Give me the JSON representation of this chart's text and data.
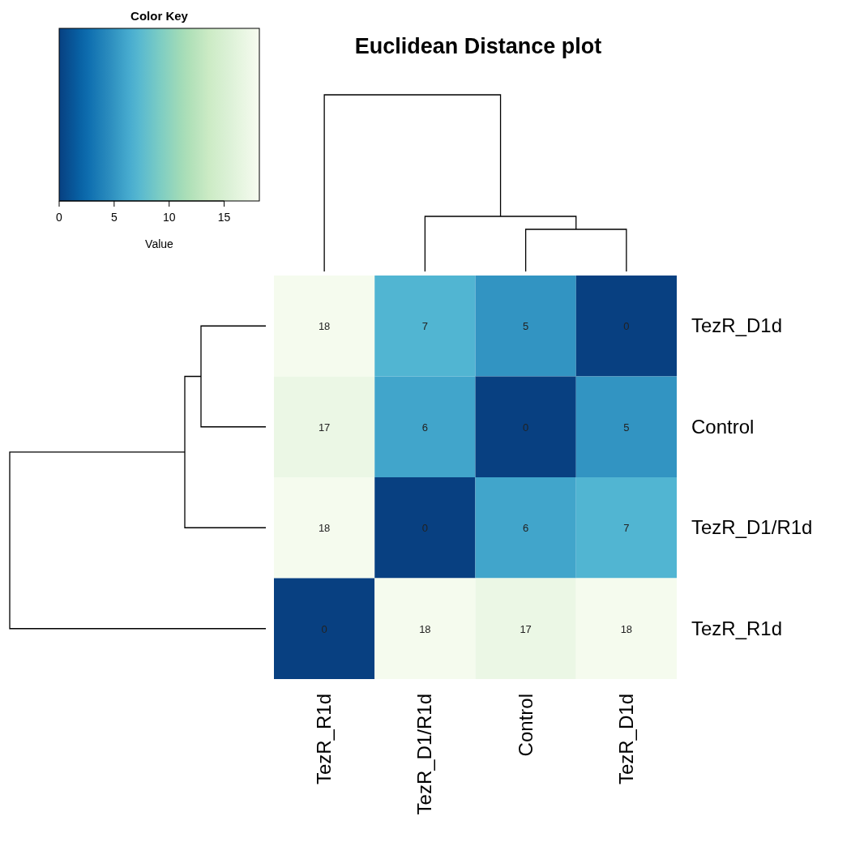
{
  "chart_data": {
    "type": "heatmap",
    "title": "Euclidean Distance plot",
    "legend_title": "Color Key",
    "clabel": "Value",
    "categories": [
      "TezR_R1d",
      "TezR_D1/R1d",
      "Control",
      "TezR_D1d"
    ],
    "y_categories": [
      "TezR_D1d",
      "Control",
      "TezR_D1/R1d",
      "TezR_R1d"
    ],
    "cells": [
      [
        18,
        7,
        5,
        0
      ],
      [
        17,
        6,
        0,
        5
      ],
      [
        18,
        0,
        6,
        7
      ],
      [
        0,
        18,
        17,
        18
      ]
    ],
    "data_labels": true,
    "clim": [
      0,
      18.2
    ],
    "cticks": [
      0,
      5,
      10,
      15
    ]
  }
}
